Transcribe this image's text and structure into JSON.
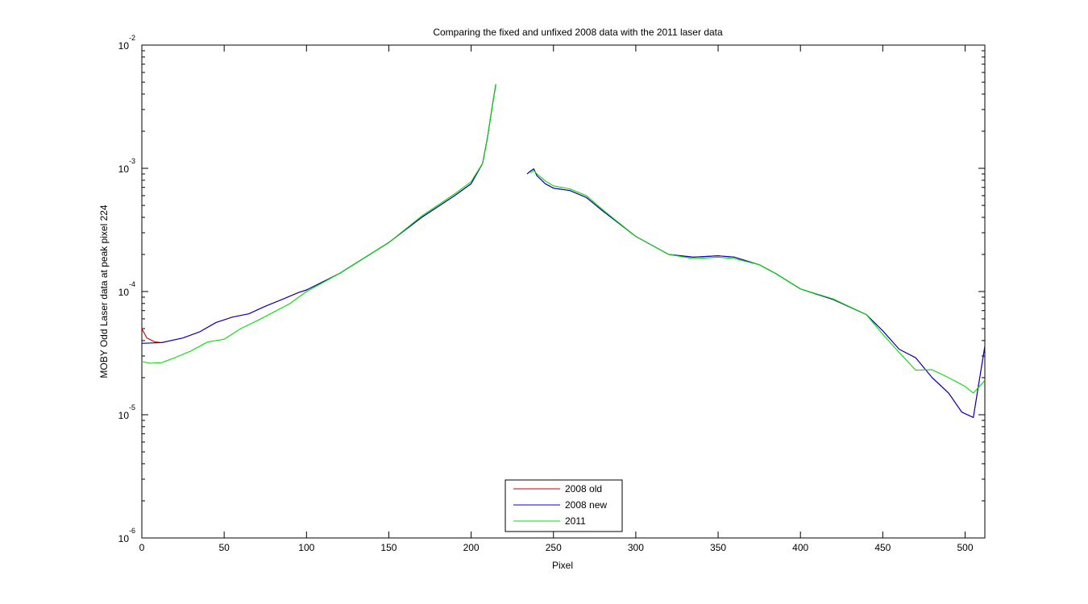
{
  "chart_data": {
    "type": "line",
    "title": "Comparing the fixed and unfixed 2008 data with the 2011 laser data",
    "xlabel": "Pixel",
    "ylabel": "MOBY Odd Laser data at peak pixel 224",
    "xlim": [
      0,
      512
    ],
    "ylim": [
      1e-06,
      0.01
    ],
    "yscale": "log",
    "grid": false,
    "legend_position": "bottom-center",
    "x_ticks": [
      0,
      50,
      100,
      150,
      200,
      250,
      300,
      350,
      400,
      450,
      500
    ],
    "y_ticks": [
      {
        "value": 1e-06,
        "base": "10",
        "exp": "-6"
      },
      {
        "value": 1e-05,
        "base": "10",
        "exp": "-5"
      },
      {
        "value": 0.0001,
        "base": "10",
        "exp": "-4"
      },
      {
        "value": 0.001,
        "base": "10",
        "exp": "-3"
      },
      {
        "value": 0.01,
        "base": "10",
        "exp": "-2"
      }
    ],
    "series": [
      {
        "name": "2008 old",
        "color": "#cc0000",
        "segments": [
          [
            [
              0,
              5e-05
            ],
            [
              3,
              4.2e-05
            ],
            [
              8,
              3.9e-05
            ],
            [
              12,
              3.85e-05
            ],
            [
              25,
              4.2e-05
            ],
            [
              35,
              4.7e-05
            ],
            [
              45,
              5.6e-05
            ],
            [
              55,
              6.2e-05
            ],
            [
              65,
              6.6e-05
            ],
            [
              75,
              7.6e-05
            ],
            [
              85,
              8.6e-05
            ],
            [
              95,
              9.8e-05
            ],
            [
              100,
              0.000103
            ],
            [
              120,
              0.00014
            ],
            [
              150,
              0.00025
            ],
            [
              170,
              0.0004
            ],
            [
              190,
              0.0006
            ],
            [
              200,
              0.00075
            ],
            [
              207,
              0.0011
            ],
            [
              210,
              0.0018
            ],
            [
              213,
              0.0033
            ],
            [
              215,
              0.0048
            ]
          ],
          [
            [
              234,
              0.0009
            ],
            [
              236,
              0.00095
            ],
            [
              238,
              0.00099
            ],
            [
              240,
              0.00087
            ],
            [
              245,
              0.00075
            ],
            [
              250,
              0.00069
            ],
            [
              260,
              0.00066
            ],
            [
              270,
              0.00058
            ],
            [
              280,
              0.00045
            ],
            [
              300,
              0.00028
            ],
            [
              320,
              0.0002
            ],
            [
              335,
              0.00019
            ],
            [
              350,
              0.000195
            ],
            [
              360,
              0.00019
            ],
            [
              375,
              0.000165
            ],
            [
              385,
              0.00014
            ],
            [
              400,
              0.000105
            ],
            [
              420,
              8.6e-05
            ],
            [
              440,
              6.5e-05
            ],
            [
              450,
              4.8e-05
            ],
            [
              460,
              3.4e-05
            ],
            [
              470,
              2.9e-05
            ],
            [
              480,
              2e-05
            ],
            [
              490,
              1.5e-05
            ],
            [
              498,
              1.05e-05
            ],
            [
              505,
              9.5e-06
            ],
            [
              512,
              3.6e-05
            ]
          ]
        ]
      },
      {
        "name": "2008 new",
        "color": "#0000cc",
        "segments": [
          [
            [
              0,
              3.8e-05
            ],
            [
              5,
              3.82e-05
            ],
            [
              12,
              3.85e-05
            ],
            [
              25,
              4.2e-05
            ],
            [
              35,
              4.7e-05
            ],
            [
              45,
              5.6e-05
            ],
            [
              55,
              6.2e-05
            ],
            [
              65,
              6.6e-05
            ],
            [
              75,
              7.6e-05
            ],
            [
              85,
              8.6e-05
            ],
            [
              95,
              9.8e-05
            ],
            [
              100,
              0.000103
            ],
            [
              120,
              0.00014
            ],
            [
              150,
              0.00025
            ],
            [
              170,
              0.0004
            ],
            [
              190,
              0.0006
            ],
            [
              200,
              0.00075
            ],
            [
              207,
              0.0011
            ],
            [
              210,
              0.0018
            ],
            [
              213,
              0.0033
            ],
            [
              215,
              0.0048
            ]
          ],
          [
            [
              234,
              0.0009
            ],
            [
              236,
              0.00095
            ],
            [
              238,
              0.00099
            ],
            [
              240,
              0.00087
            ],
            [
              245,
              0.00075
            ],
            [
              250,
              0.00069
            ],
            [
              260,
              0.00066
            ],
            [
              270,
              0.00058
            ],
            [
              280,
              0.00045
            ],
            [
              300,
              0.00028
            ],
            [
              320,
              0.0002
            ],
            [
              335,
              0.00019
            ],
            [
              350,
              0.000195
            ],
            [
              360,
              0.00019
            ],
            [
              375,
              0.000165
            ],
            [
              385,
              0.00014
            ],
            [
              400,
              0.000105
            ],
            [
              420,
              8.6e-05
            ],
            [
              440,
              6.5e-05
            ],
            [
              450,
              4.8e-05
            ],
            [
              460,
              3.4e-05
            ],
            [
              470,
              2.9e-05
            ],
            [
              480,
              2e-05
            ],
            [
              490,
              1.5e-05
            ],
            [
              498,
              1.05e-05
            ],
            [
              505,
              9.5e-06
            ],
            [
              512,
              3.6e-05
            ]
          ]
        ]
      },
      {
        "name": "2011",
        "color": "#00dd00",
        "segments": [
          [
            [
              0,
              2.7e-05
            ],
            [
              5,
              2.62e-05
            ],
            [
              12,
              2.65e-05
            ],
            [
              20,
              2.9e-05
            ],
            [
              30,
              3.3e-05
            ],
            [
              40,
              3.9e-05
            ],
            [
              50,
              4.1e-05
            ],
            [
              60,
              5e-05
            ],
            [
              70,
              5.8e-05
            ],
            [
              80,
              6.8e-05
            ],
            [
              90,
              8e-05
            ],
            [
              100,
              0.0001
            ],
            [
              120,
              0.00014
            ],
            [
              150,
              0.00025
            ],
            [
              170,
              0.00041
            ],
            [
              190,
              0.00062
            ],
            [
              200,
              0.00078
            ],
            [
              207,
              0.0011
            ],
            [
              210,
              0.0018
            ],
            [
              213,
              0.0033
            ],
            [
              215,
              0.0048
            ]
          ],
          [
            [
              236,
              0.00092
            ],
            [
              238,
              0.00096
            ],
            [
              240,
              0.0009
            ],
            [
              245,
              0.00079
            ],
            [
              250,
              0.00072
            ],
            [
              260,
              0.00068
            ],
            [
              270,
              0.0006
            ],
            [
              280,
              0.00046
            ],
            [
              300,
              0.00028
            ],
            [
              320,
              0.0002
            ],
            [
              335,
              0.000185
            ],
            [
              350,
              0.00019
            ],
            [
              360,
              0.000185
            ],
            [
              375,
              0.000165
            ],
            [
              385,
              0.00014
            ],
            [
              400,
              0.000105
            ],
            [
              420,
              8.7e-05
            ],
            [
              440,
              6.5e-05
            ],
            [
              450,
              4.5e-05
            ],
            [
              460,
              3.2e-05
            ],
            [
              470,
              2.3e-05
            ],
            [
              480,
              2.32e-05
            ],
            [
              490,
              2e-05
            ],
            [
              500,
              1.7e-05
            ],
            [
              505,
              1.5e-05
            ],
            [
              512,
              1.9e-05
            ]
          ]
        ]
      }
    ]
  }
}
